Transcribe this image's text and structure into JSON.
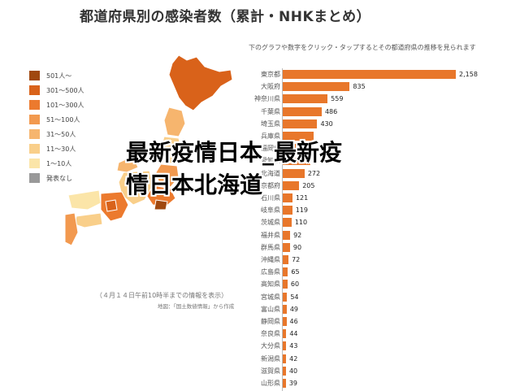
{
  "header": {
    "title": "都道府県別の感染者数（累計・NHKまとめ）"
  },
  "note": "下のグラフや数字をクリック・タップするとその都道府県の推移を見られます",
  "legend": [
    {
      "label": "501人〜",
      "color": "#a0480f"
    },
    {
      "label": "301〜500人",
      "color": "#d9621a"
    },
    {
      "label": "101〜300人",
      "color": "#ec7a2e"
    },
    {
      "label": "51〜100人",
      "color": "#f2994f"
    },
    {
      "label": "31〜50人",
      "color": "#f6b56e"
    },
    {
      "label": "11〜30人",
      "color": "#f9cf8a"
    },
    {
      "label": "1〜10人",
      "color": "#fbe5a8"
    },
    {
      "label": "発表なし",
      "color": "#999999"
    }
  ],
  "map": {
    "caption": "（４月１４日午前10時半までの情報を表示）",
    "credit": "地図：「国土数値情報」から作成"
  },
  "overlay": {
    "line1": "最新疫情日本_最新疫",
    "line2": "情日本北海道"
  },
  "chart_data": {
    "type": "bar",
    "orientation": "horizontal",
    "bar_color": "#e8772b",
    "categories": [
      "東京都",
      "大阪府",
      "神奈川県",
      "千葉県",
      "埼玉県",
      "兵庫県",
      "福岡県",
      "愛知県",
      "北海道",
      "京都府",
      "石川県",
      "岐阜県",
      "茨城県",
      "福井県",
      "群馬県",
      "沖縄県",
      "広島県",
      "高知県",
      "宮城県",
      "富山県",
      "静岡県",
      "奈良県",
      "大分県",
      "新潟県",
      "滋賀県",
      "山形県"
    ],
    "values": [
      2158,
      835,
      559,
      486,
      430,
      384,
      368,
      342,
      272,
      205,
      121,
      119,
      110,
      92,
      90,
      72,
      65,
      60,
      54,
      49,
      46,
      44,
      43,
      42,
      40,
      39
    ],
    "value_labels": [
      "2,158",
      "835",
      "559",
      "486",
      "430",
      "",
      "",
      "",
      "272",
      "205",
      "121",
      "119",
      "110",
      "92",
      "90",
      "72",
      "65",
      "60",
      "54",
      "49",
      "46",
      "44",
      "43",
      "42",
      "40",
      "39"
    ],
    "xlim": [
      0,
      2158
    ]
  }
}
